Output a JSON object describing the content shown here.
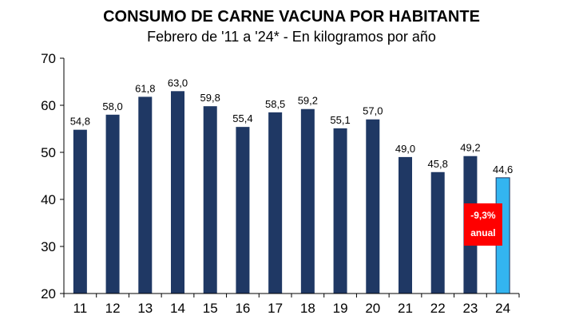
{
  "chart_data": {
    "type": "bar",
    "title": "CONSUMO DE CARNE VACUNA POR HABITANTE",
    "subtitle": "Febrero de '11 a '24* - En kilogramos por año",
    "xlabel": "",
    "ylabel": "",
    "ylim": [
      20,
      70
    ],
    "yticks": [
      20,
      30,
      40,
      50,
      60,
      70
    ],
    "grid": false,
    "categories": [
      "11",
      "12",
      "13",
      "14",
      "15",
      "16",
      "17",
      "18",
      "19",
      "20",
      "21",
      "22",
      "23",
      "24"
    ],
    "values": [
      54.8,
      58.0,
      61.8,
      63.0,
      59.8,
      55.4,
      58.5,
      59.2,
      55.1,
      57.0,
      49.0,
      45.8,
      49.2,
      44.6
    ],
    "data_labels": [
      "54,8",
      "58,0",
      "61,8",
      "63,0",
      "59,8",
      "55,4",
      "58,5",
      "59,2",
      "55,1",
      "57,0",
      "49,0",
      "45,8",
      "49,2",
      "44,6"
    ],
    "colors": {
      "bar": "#1f3864",
      "highlight_bar": "#33b5f0",
      "highlight_bar_border": "#1f3864",
      "badge": "#ff0000",
      "axis": "#000000"
    },
    "highlight_index": 13,
    "annotation": {
      "line1": "-9,3%",
      "line2": "anual"
    }
  }
}
